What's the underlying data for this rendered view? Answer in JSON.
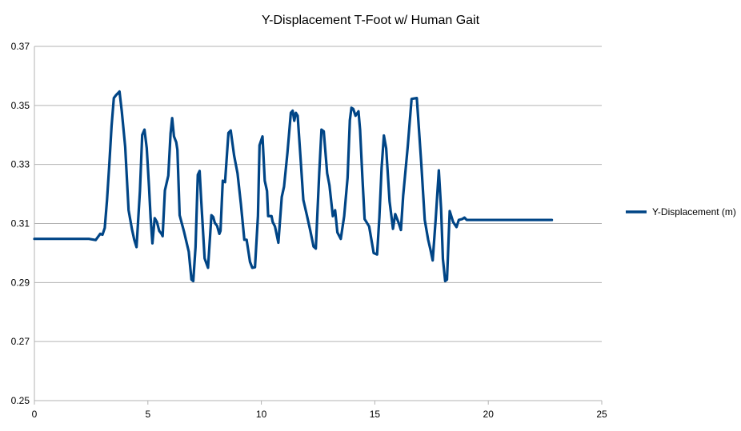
{
  "chart_data": {
    "type": "line",
    "title": "Y-Displacement T-Foot w/ Human Gait",
    "xlabel": "",
    "ylabel": "",
    "xlim": [
      0,
      25
    ],
    "ylim": [
      0.25,
      0.37
    ],
    "x_ticks": [
      "0",
      "5",
      "10",
      "15",
      "20",
      "25"
    ],
    "y_ticks": [
      "0.25",
      "0.27",
      "0.29",
      "0.31",
      "0.33",
      "0.35",
      "0.37"
    ],
    "grid": "horizontal",
    "legend_position": "right",
    "series": [
      {
        "name": "Y-Displacement (m)",
        "color": "#004586",
        "points": [
          [
            0,
            0.3048
          ],
          [
            0.5,
            0.3048
          ],
          [
            1.0,
            0.3048
          ],
          [
            1.5,
            0.3048
          ],
          [
            2.0,
            0.3048
          ],
          [
            2.4,
            0.3048
          ],
          [
            2.7,
            0.3044
          ],
          [
            2.9,
            0.3065
          ],
          [
            3.0,
            0.3062
          ],
          [
            3.1,
            0.3085
          ],
          [
            3.2,
            0.318
          ],
          [
            3.3,
            0.33
          ],
          [
            3.4,
            0.343
          ],
          [
            3.5,
            0.3525
          ],
          [
            3.6,
            0.3535
          ],
          [
            3.75,
            0.3547
          ],
          [
            3.85,
            0.348
          ],
          [
            4.0,
            0.336
          ],
          [
            4.15,
            0.3145
          ],
          [
            4.3,
            0.308
          ],
          [
            4.4,
            0.3045
          ],
          [
            4.5,
            0.302
          ],
          [
            4.65,
            0.321
          ],
          [
            4.75,
            0.34
          ],
          [
            4.85,
            0.3418
          ],
          [
            4.95,
            0.3355
          ],
          [
            5.05,
            0.3225
          ],
          [
            5.12,
            0.312
          ],
          [
            5.2,
            0.3033
          ],
          [
            5.3,
            0.3118
          ],
          [
            5.4,
            0.3105
          ],
          [
            5.5,
            0.3075
          ],
          [
            5.6,
            0.3065
          ],
          [
            5.65,
            0.3057
          ],
          [
            5.75,
            0.3212
          ],
          [
            5.9,
            0.3262
          ],
          [
            6.0,
            0.3405
          ],
          [
            6.07,
            0.3457
          ],
          [
            6.15,
            0.3395
          ],
          [
            6.25,
            0.3375
          ],
          [
            6.3,
            0.335
          ],
          [
            6.4,
            0.3128
          ],
          [
            6.6,
            0.307
          ],
          [
            6.8,
            0.3005
          ],
          [
            6.92,
            0.291
          ],
          [
            7.0,
            0.2905
          ],
          [
            7.1,
            0.302
          ],
          [
            7.2,
            0.3265
          ],
          [
            7.28,
            0.3278
          ],
          [
            7.35,
            0.3178
          ],
          [
            7.5,
            0.2982
          ],
          [
            7.65,
            0.295
          ],
          [
            7.8,
            0.3128
          ],
          [
            7.88,
            0.3122
          ],
          [
            7.95,
            0.3102
          ],
          [
            8.05,
            0.3092
          ],
          [
            8.15,
            0.3065
          ],
          [
            8.2,
            0.3075
          ],
          [
            8.3,
            0.3245
          ],
          [
            8.4,
            0.324
          ],
          [
            8.55,
            0.3407
          ],
          [
            8.65,
            0.3415
          ],
          [
            8.8,
            0.333
          ],
          [
            8.95,
            0.327
          ],
          [
            9.1,
            0.3165
          ],
          [
            9.25,
            0.3045
          ],
          [
            9.35,
            0.3045
          ],
          [
            9.5,
            0.297
          ],
          [
            9.6,
            0.295
          ],
          [
            9.72,
            0.2952
          ],
          [
            9.85,
            0.3125
          ],
          [
            9.92,
            0.3365
          ],
          [
            10.05,
            0.3395
          ],
          [
            10.15,
            0.3245
          ],
          [
            10.25,
            0.321
          ],
          [
            10.3,
            0.3125
          ],
          [
            10.45,
            0.3125
          ],
          [
            10.5,
            0.3105
          ],
          [
            10.6,
            0.309
          ],
          [
            10.75,
            0.3035
          ],
          [
            10.9,
            0.319
          ],
          [
            11.0,
            0.3225
          ],
          [
            11.15,
            0.334
          ],
          [
            11.3,
            0.3475
          ],
          [
            11.38,
            0.3482
          ],
          [
            11.45,
            0.3448
          ],
          [
            11.52,
            0.3475
          ],
          [
            11.6,
            0.3465
          ],
          [
            11.72,
            0.333
          ],
          [
            11.85,
            0.318
          ],
          [
            12.0,
            0.313
          ],
          [
            12.15,
            0.3078
          ],
          [
            12.3,
            0.3022
          ],
          [
            12.4,
            0.3015
          ],
          [
            12.55,
            0.327
          ],
          [
            12.65,
            0.3418
          ],
          [
            12.75,
            0.3412
          ],
          [
            12.9,
            0.327
          ],
          [
            13.0,
            0.323
          ],
          [
            13.15,
            0.3125
          ],
          [
            13.25,
            0.3145
          ],
          [
            13.35,
            0.307
          ],
          [
            13.5,
            0.3048
          ],
          [
            13.65,
            0.3125
          ],
          [
            13.8,
            0.3255
          ],
          [
            13.9,
            0.345
          ],
          [
            13.97,
            0.3492
          ],
          [
            14.05,
            0.3488
          ],
          [
            14.15,
            0.3465
          ],
          [
            14.28,
            0.348
          ],
          [
            14.35,
            0.3418
          ],
          [
            14.45,
            0.326
          ],
          [
            14.55,
            0.3115
          ],
          [
            14.75,
            0.309
          ],
          [
            14.95,
            0.3
          ],
          [
            15.1,
            0.2995
          ],
          [
            15.2,
            0.312
          ],
          [
            15.3,
            0.329
          ],
          [
            15.4,
            0.3398
          ],
          [
            15.5,
            0.3355
          ],
          [
            15.65,
            0.3175
          ],
          [
            15.8,
            0.3082
          ],
          [
            15.9,
            0.3132
          ],
          [
            16.05,
            0.3102
          ],
          [
            16.15,
            0.3078
          ],
          [
            16.25,
            0.3195
          ],
          [
            16.45,
            0.336
          ],
          [
            16.62,
            0.3522
          ],
          [
            16.85,
            0.3525
          ],
          [
            17.05,
            0.33
          ],
          [
            17.2,
            0.3112
          ],
          [
            17.35,
            0.3045
          ],
          [
            17.45,
            0.3012
          ],
          [
            17.55,
            0.2975
          ],
          [
            17.68,
            0.3112
          ],
          [
            17.82,
            0.328
          ],
          [
            17.92,
            0.315
          ],
          [
            18.0,
            0.298
          ],
          [
            18.1,
            0.2905
          ],
          [
            18.18,
            0.291
          ],
          [
            18.3,
            0.3142
          ],
          [
            18.45,
            0.3105
          ],
          [
            18.6,
            0.3088
          ],
          [
            18.7,
            0.3112
          ],
          [
            18.85,
            0.3115
          ],
          [
            18.95,
            0.312
          ],
          [
            19.05,
            0.3112
          ],
          [
            19.2,
            0.3112
          ],
          [
            19.5,
            0.3112
          ],
          [
            20.0,
            0.3112
          ],
          [
            21.0,
            0.3112
          ],
          [
            22.0,
            0.3112
          ],
          [
            22.8,
            0.3112
          ]
        ]
      }
    ]
  }
}
